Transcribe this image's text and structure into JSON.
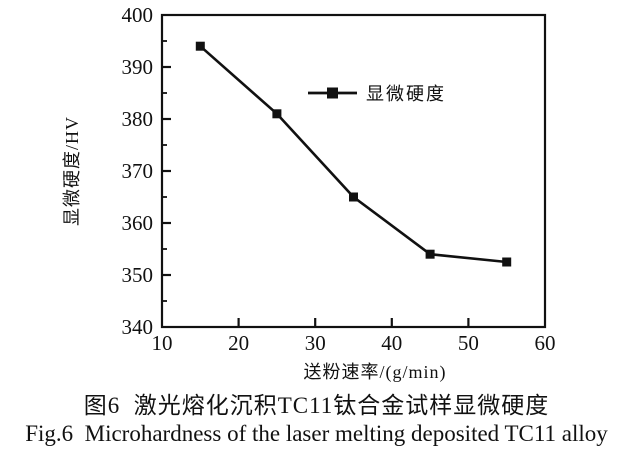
{
  "figure": {
    "caption_zh": "图6  激光熔化沉积TC11钛合金试样显微硬度",
    "caption_en": "Fig.6  Microhardness of the laser melting deposited TC11 alloy"
  },
  "chart_data": {
    "type": "line",
    "title": "",
    "xlabel": "送粉速率/(g/min)",
    "ylabel": "显微硬度/HV",
    "x": [
      15,
      25,
      35,
      45,
      55
    ],
    "y": [
      394,
      381,
      365,
      354,
      352.5
    ],
    "series": [
      {
        "name": "显微硬度",
        "values": [
          394,
          381,
          365,
          354,
          352.5
        ]
      }
    ],
    "xlim": [
      10,
      60
    ],
    "ylim": [
      340,
      400
    ],
    "xticks": [
      10,
      20,
      30,
      40,
      50,
      60
    ],
    "yticks": [
      340,
      350,
      360,
      370,
      380,
      390,
      400
    ],
    "y_minor_ticks": [
      345,
      355,
      365,
      375,
      385,
      395
    ],
    "legend": {
      "label": "显微硬度",
      "position": "inside-upper-middle"
    },
    "grid": false,
    "line_color": "#111111",
    "marker": "filled-square",
    "background": "#ffffff"
  }
}
